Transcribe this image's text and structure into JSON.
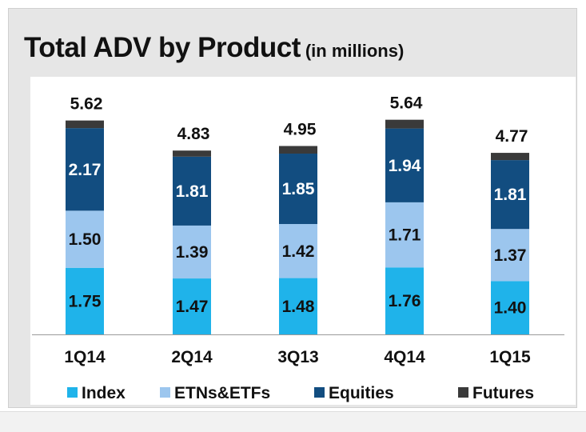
{
  "chart_data": {
    "type": "bar",
    "stacked": true,
    "title": "Total ADV by Product",
    "subtitle": "(in millions)",
    "categories": [
      "1Q14",
      "2Q14",
      "3Q13",
      "4Q14",
      "1Q15"
    ],
    "series": [
      {
        "name": "Index",
        "color": "#1fb3ea",
        "values": [
          1.75,
          1.47,
          1.48,
          1.76,
          1.4
        ]
      },
      {
        "name": "ETNs&ETFs",
        "color": "#9cc6ee",
        "values": [
          1.5,
          1.39,
          1.42,
          1.71,
          1.37
        ]
      },
      {
        "name": "Equities",
        "color": "#124d80",
        "values": [
          2.17,
          1.81,
          1.85,
          1.94,
          1.81
        ]
      },
      {
        "name": "Futures",
        "color": "#3a3a3a",
        "values": [
          0.2,
          0.16,
          0.2,
          0.23,
          0.19
        ]
      }
    ],
    "totals": [
      "5.62",
      "4.83",
      "4.95",
      "5.64",
      "4.77"
    ],
    "segment_labels": [
      [
        "1.75",
        "1.50",
        "2.17"
      ],
      [
        "1.47",
        "1.39",
        "1.81"
      ],
      [
        "1.48",
        "1.42",
        "1.85"
      ],
      [
        "1.76",
        "1.71",
        "1.94"
      ],
      [
        "1.40",
        "1.37",
        "1.81"
      ]
    ],
    "ylim": [
      0,
      6.6
    ],
    "grid": false,
    "legend_position": "bottom"
  }
}
